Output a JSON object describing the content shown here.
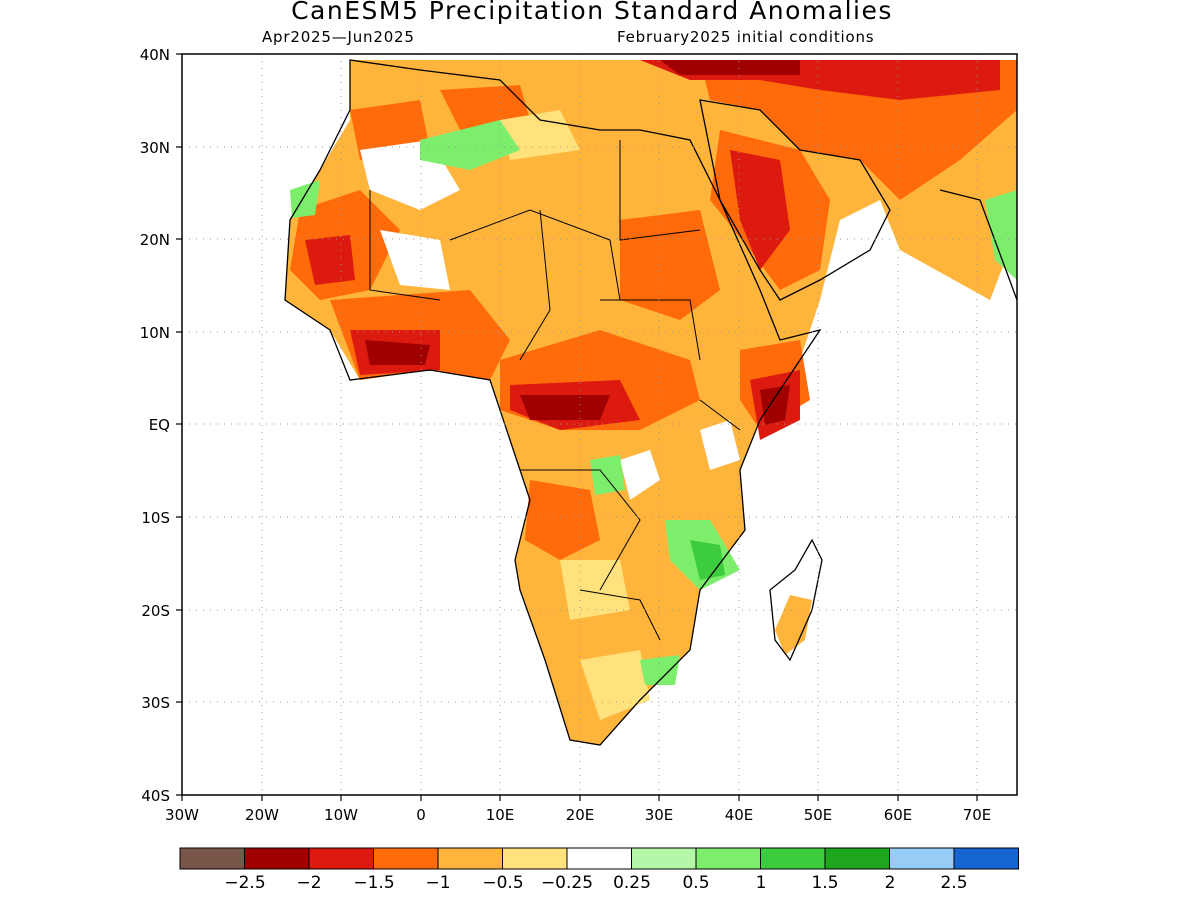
{
  "title": "CanESM5 Precipitation Standard Anomalies",
  "subtitle_left": "Apr2025—Jun2025",
  "subtitle_right": "February2025 initial conditions",
  "y_ticks": [
    "40N",
    "30N",
    "20N",
    "10N",
    "EQ",
    "10S",
    "20S",
    "30S",
    "40S"
  ],
  "x_ticks": [
    "30W",
    "20W",
    "10W",
    "0",
    "10E",
    "20E",
    "30E",
    "40E",
    "50E",
    "60E",
    "70E"
  ],
  "colorbar": {
    "colors": [
      "#7a5649",
      "#a00000",
      "#dd1a10",
      "#ff6a0a",
      "#ffb53c",
      "#ffe27c",
      "#ffffff",
      "#b4f7a8",
      "#7cee6c",
      "#3dcc3d",
      "#1fa61f",
      "#96ccf6",
      "#1464d2"
    ],
    "labels": [
      "−2.5",
      "−2",
      "−1.5",
      "−1",
      "−0.5",
      "−0.25",
      "0.25",
      "0.5",
      "1",
      "1.5",
      "2",
      "2.5"
    ]
  },
  "map": {
    "region": "Africa and Arabian Peninsula",
    "lon_range": [
      -30,
      75
    ],
    "lat_range": [
      -40,
      40
    ],
    "variable": "Precipitation Standard Anomalies"
  }
}
